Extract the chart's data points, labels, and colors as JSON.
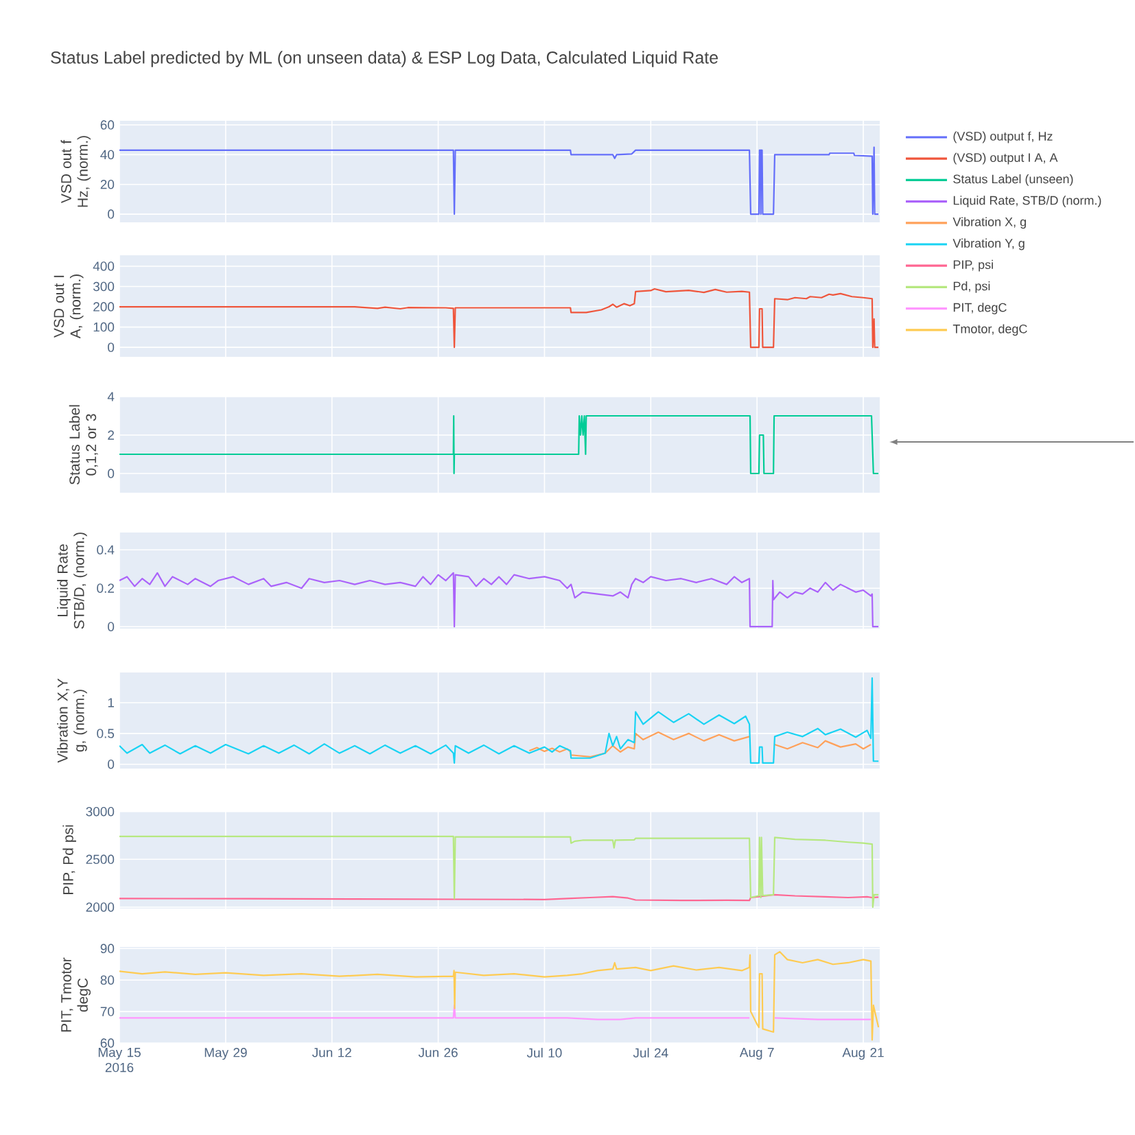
{
  "chart_data": [
    {
      "type": "line",
      "title": "Status Label predicted by ML (on unseen data) & ESP Log Data, Calculated Liquid Rate",
      "ylabel": "VSD out f Hz, (norm.)",
      "xlim": [
        "2016-05-15",
        "2016-08-23T04:00"
      ],
      "ylim": [
        -5.5,
        62.8
      ],
      "yticks": [
        0,
        20,
        40,
        60
      ],
      "xticks": [
        {
          "value": "2016-05-15",
          "label": null
        },
        {
          "value": "2016-05-29",
          "label": null
        },
        {
          "value": "2016-06-12",
          "label": null
        },
        {
          "value": "2016-06-26",
          "label": null
        },
        {
          "value": "2016-07-10",
          "label": null
        },
        {
          "value": "2016-07-24",
          "label": null
        },
        {
          "value": "2016-08-07",
          "label": null
        },
        {
          "value": "2016-08-21",
          "label": null
        }
      ],
      "grid": true,
      "legend": "right",
      "tick_labels": "y",
      "series": [
        {
          "name": "(VSD) output f, Hz",
          "color": "#636efa",
          "x": [
            "2016-05-15T00:00",
            "2016-06-28T00:00",
            "2016-06-28T03:00",
            "2016-06-28T06:00",
            "2016-07-13T10:00",
            "2016-07-13T12:00",
            "2016-07-19T00:00",
            "2016-07-19T06:00",
            "2016-07-19T12:00",
            "2016-07-21T12:00",
            "2016-07-22T00:00",
            "2016-08-06T00:00",
            "2016-08-06T04:00",
            "2016-08-07T06:00",
            "2016-08-07T08:00",
            "2016-08-07T11:00",
            "2016-08-07T12:00",
            "2016-08-07T13:00",
            "2016-08-07T16:00",
            "2016-08-07T18:00",
            "2016-08-09T04:00",
            "2016-08-09T08:00",
            "2016-08-16T12:00",
            "2016-08-16T14:00",
            "2016-08-19T18:00",
            "2016-08-19T20:00",
            "2016-08-22T04:00",
            "2016-08-22T06:00",
            "2016-08-22T10:00",
            "2016-08-22T12:00",
            "2016-08-23T00:00"
          ],
          "values": [
            43,
            43,
            0,
            43,
            43,
            40,
            40,
            37.5,
            40,
            40.5,
            43,
            43,
            0,
            0,
            43,
            43,
            0,
            43,
            43,
            0,
            0,
            40,
            40,
            41,
            41,
            39.5,
            39,
            0,
            45,
            0,
            0
          ]
        }
      ]
    },
    {
      "type": "line",
      "ylabel": "VSD out I A, (norm.)",
      "xlim": [
        "2016-05-15",
        "2016-08-23T04:00"
      ],
      "ylim": [
        -47,
        454
      ],
      "yticks": [
        0,
        100,
        200,
        300,
        400
      ],
      "xticks": [
        {
          "value": "2016-05-15",
          "label": null
        },
        {
          "value": "2016-05-29",
          "label": null
        },
        {
          "value": "2016-06-12",
          "label": null
        },
        {
          "value": "2016-06-26",
          "label": null
        },
        {
          "value": "2016-07-10",
          "label": null
        },
        {
          "value": "2016-07-24",
          "label": null
        },
        {
          "value": "2016-08-07",
          "label": null
        },
        {
          "value": "2016-08-21",
          "label": null
        }
      ],
      "grid": true,
      "legend": "right",
      "tick_labels": "y",
      "series": [
        {
          "name": "(VSD) output I A, A",
          "color": "#ef553b",
          "x": [
            "2016-05-15T00:00",
            "2016-06-15T00:00",
            "2016-06-18T00:00",
            "2016-06-19T00:00",
            "2016-06-21T00:00",
            "2016-06-22T00:00",
            "2016-06-27T00:00",
            "2016-06-28T00:00",
            "2016-06-28T03:00",
            "2016-06-28T06:00",
            "2016-07-13T10:00",
            "2016-07-13T12:00",
            "2016-07-15T12:00",
            "2016-07-17T12:00",
            "2016-07-18T12:00",
            "2016-07-19T00:00",
            "2016-07-19T12:00",
            "2016-07-20T12:00",
            "2016-07-21T06:00",
            "2016-07-21T20:00",
            "2016-07-22T00:00",
            "2016-07-24T00:00",
            "2016-07-24T12:00",
            "2016-07-26T00:00",
            "2016-07-29T00:00",
            "2016-07-31T00:00",
            "2016-08-01T12:00",
            "2016-08-03T00:00",
            "2016-08-05T00:00",
            "2016-08-06T00:00",
            "2016-08-06T04:00",
            "2016-08-07T06:00",
            "2016-08-07T08:00",
            "2016-08-07T16:00",
            "2016-08-07T18:00",
            "2016-08-09T04:00",
            "2016-08-09T08:00",
            "2016-08-11T00:00",
            "2016-08-12T00:00",
            "2016-08-13T12:00",
            "2016-08-14T00:00",
            "2016-08-15T12:00",
            "2016-08-16T12:00",
            "2016-08-17T00:00",
            "2016-08-18T00:00",
            "2016-08-19T12:00",
            "2016-08-21T00:00",
            "2016-08-22T04:00",
            "2016-08-22T06:00",
            "2016-08-22T10:00",
            "2016-08-22T12:00",
            "2016-08-23T00:00"
          ],
          "values": [
            200,
            200,
            192,
            198,
            190,
            196,
            195,
            192,
            0,
            195,
            195,
            172,
            172,
            185,
            200,
            212,
            198,
            215,
            205,
            215,
            275,
            280,
            288,
            274,
            281,
            271,
            285,
            272,
            276,
            272,
            0,
            0,
            190,
            190,
            0,
            0,
            240,
            235,
            245,
            240,
            250,
            245,
            262,
            258,
            265,
            250,
            245,
            240,
            0,
            140,
            0,
            0
          ]
        }
      ]
    },
    {
      "type": "line",
      "ylabel": "Status Label 0,1,2 or 3",
      "xlim": [
        "2016-05-15",
        "2016-08-23T04:00"
      ],
      "ylim": [
        -1,
        4
      ],
      "yticks": [
        0,
        2,
        4
      ],
      "xticks": [
        {
          "value": "2016-05-15",
          "label": null
        },
        {
          "value": "2016-05-29",
          "label": null
        },
        {
          "value": "2016-06-12",
          "label": null
        },
        {
          "value": "2016-06-26",
          "label": null
        },
        {
          "value": "2016-07-10",
          "label": null
        },
        {
          "value": "2016-07-24",
          "label": null
        },
        {
          "value": "2016-08-07",
          "label": null
        },
        {
          "value": "2016-08-21",
          "label": null
        }
      ],
      "grid": true,
      "legend": "right",
      "tick_labels": "y",
      "series": [
        {
          "name": "Status Label (unseen)",
          "color": "#00cc96",
          "x": [
            "2016-05-15T00:00",
            "2016-06-28T00:00",
            "2016-06-28T01:00",
            "2016-06-28T02:00",
            "2016-06-28T03:00",
            "2016-07-14T12:00",
            "2016-07-14T14:00",
            "2016-07-14T18:00",
            "2016-07-14T22:00",
            "2016-07-15T02:00",
            "2016-07-15T06:00",
            "2016-07-15T10:00",
            "2016-07-15T12:00",
            "2016-08-06T02:00",
            "2016-08-06T04:00",
            "2016-08-07T06:00",
            "2016-08-07T08:00",
            "2016-08-07T20:00",
            "2016-08-07T22:00",
            "2016-08-09T04:00",
            "2016-08-09T06:00",
            "2016-08-22T02:00",
            "2016-08-22T04:00",
            "2016-08-22T08:00",
            "2016-08-23T00:00"
          ],
          "values": [
            1,
            1,
            3,
            0,
            1,
            1,
            3,
            2,
            3,
            2,
            3,
            1,
            3,
            3,
            0,
            0,
            2,
            2,
            0,
            0,
            3,
            3,
            2,
            0,
            0
          ]
        }
      ]
    },
    {
      "type": "line",
      "ylabel": "Liquid Rate STB/D, (norm.)",
      "xlim": [
        "2016-05-15",
        "2016-08-23T04:00"
      ],
      "ylim": [
        -0.01,
        0.49
      ],
      "yticks": [
        0,
        0.2,
        0.4
      ],
      "xticks": [
        {
          "value": "2016-05-15",
          "label": null
        },
        {
          "value": "2016-05-29",
          "label": null
        },
        {
          "value": "2016-06-12",
          "label": null
        },
        {
          "value": "2016-06-26",
          "label": null
        },
        {
          "value": "2016-07-10",
          "label": null
        },
        {
          "value": "2016-07-24",
          "label": null
        },
        {
          "value": "2016-08-07",
          "label": null
        },
        {
          "value": "2016-08-21",
          "label": null
        }
      ],
      "grid": true,
      "legend": "right",
      "tick_labels": "y",
      "series": [
        {
          "name": "Liquid Rate, STB/D (norm.)",
          "color": "#ab63fa",
          "x": [
            "2016-05-15T00:00",
            "2016-05-16T00:00",
            "2016-05-17T00:00",
            "2016-05-18T00:00",
            "2016-05-19T00:00",
            "2016-05-20T00:00",
            "2016-05-21T00:00",
            "2016-05-22T00:00",
            "2016-05-24T00:00",
            "2016-05-25T00:00",
            "2016-05-27T00:00",
            "2016-05-28T00:00",
            "2016-05-30T00:00",
            "2016-06-01T00:00",
            "2016-06-03T00:00",
            "2016-06-04T00:00",
            "2016-06-06T00:00",
            "2016-06-08T00:00",
            "2016-06-09T00:00",
            "2016-06-11T00:00",
            "2016-06-13T00:00",
            "2016-06-15T00:00",
            "2016-06-17T00:00",
            "2016-06-19T00:00",
            "2016-06-21T00:00",
            "2016-06-23T00:00",
            "2016-06-24T00:00",
            "2016-06-25T00:00",
            "2016-06-26T00:00",
            "2016-06-27T00:00",
            "2016-06-28T00:00",
            "2016-06-28T03:00",
            "2016-06-28T06:00",
            "2016-06-30T00:00",
            "2016-07-01T00:00",
            "2016-07-02T00:00",
            "2016-07-03T00:00",
            "2016-07-04T00:00",
            "2016-07-05T00:00",
            "2016-07-06T00:00",
            "2016-07-08T00:00",
            "2016-07-10T00:00",
            "2016-07-12T00:00",
            "2016-07-13T00:00",
            "2016-07-13T12:00",
            "2016-07-14T00:00",
            "2016-07-15T00:00",
            "2016-07-17T00:00",
            "2016-07-19T00:00",
            "2016-07-20T00:00",
            "2016-07-21T00:00",
            "2016-07-21T12:00",
            "2016-07-22T00:00",
            "2016-07-23T00:00",
            "2016-07-24T00:00",
            "2016-07-26T00:00",
            "2016-07-28T00:00",
            "2016-07-30T00:00",
            "2016-08-01T00:00",
            "2016-08-03T00:00",
            "2016-08-04T00:00",
            "2016-08-05T00:00",
            "2016-08-06T00:00",
            "2016-08-06T02:00",
            "2016-08-09T00:00",
            "2016-08-09T02:00",
            "2016-08-09T04:00",
            "2016-08-10T00:00",
            "2016-08-11T00:00",
            "2016-08-12T00:00",
            "2016-08-13T00:00",
            "2016-08-14T00:00",
            "2016-08-15T00:00",
            "2016-08-16T00:00",
            "2016-08-17T00:00",
            "2016-08-18T00:00",
            "2016-08-19T00:00",
            "2016-08-20T00:00",
            "2016-08-21T00:00",
            "2016-08-22T00:00",
            "2016-08-22T04:00",
            "2016-08-22T06:00",
            "2016-08-23T00:00"
          ],
          "values": [
            0.24,
            0.26,
            0.21,
            0.25,
            0.22,
            0.28,
            0.21,
            0.26,
            0.22,
            0.25,
            0.21,
            0.24,
            0.26,
            0.22,
            0.25,
            0.21,
            0.23,
            0.2,
            0.25,
            0.23,
            0.24,
            0.22,
            0.24,
            0.22,
            0.23,
            0.21,
            0.26,
            0.22,
            0.27,
            0.24,
            0.28,
            0,
            0.27,
            0.26,
            0.21,
            0.25,
            0.22,
            0.26,
            0.22,
            0.27,
            0.25,
            0.26,
            0.24,
            0.2,
            0.22,
            0.15,
            0.18,
            0.17,
            0.16,
            0.18,
            0.15,
            0.22,
            0.25,
            0.23,
            0.26,
            0.24,
            0.25,
            0.23,
            0.25,
            0.22,
            0.26,
            0.23,
            0.25,
            0,
            0,
            0.24,
            0.14,
            0.18,
            0.15,
            0.18,
            0.17,
            0.2,
            0.18,
            0.23,
            0.19,
            0.22,
            0.2,
            0.18,
            0.19,
            0.16,
            0.17,
            0,
            0
          ]
        }
      ]
    },
    {
      "type": "line",
      "ylabel": "Vibration X,Y g, (norm.)",
      "xlim": [
        "2016-05-15",
        "2016-08-23T04:00"
      ],
      "ylim": [
        -0.07,
        1.49
      ],
      "yticks": [
        0,
        0.5,
        1
      ],
      "xticks": [
        {
          "value": "2016-05-15",
          "label": null
        },
        {
          "value": "2016-05-29",
          "label": null
        },
        {
          "value": "2016-06-12",
          "label": null
        },
        {
          "value": "2016-06-26",
          "label": null
        },
        {
          "value": "2016-07-10",
          "label": null
        },
        {
          "value": "2016-07-24",
          "label": null
        },
        {
          "value": "2016-08-07",
          "label": null
        },
        {
          "value": "2016-08-21",
          "label": null
        }
      ],
      "grid": true,
      "legend": "right",
      "tick_labels": "y",
      "series": [
        {
          "name": "Vibration X, g",
          "color": "#ffa15a",
          "x": [
            "2016-07-08T00:00",
            "2016-07-09T00:00",
            "2016-07-10T00:00",
            "2016-07-11T00:00",
            "2016-07-12T00:00",
            "2016-07-13T00:00",
            "2016-07-13T10:00",
            "2016-07-13T12:00",
            "2016-07-16T00:00",
            "2016-07-18T00:00",
            "2016-07-19T00:00",
            "2016-07-20T00:00",
            "2016-07-21T00:00",
            "2016-07-21T20:00",
            "2016-07-22T00:00",
            "2016-07-23T00:00",
            "2016-07-25T00:00",
            "2016-07-27T00:00",
            "2016-07-29T00:00",
            "2016-07-31T00:00",
            "2016-08-02T00:00",
            "2016-08-04T00:00",
            "2016-08-06T00:00",
            "2016-08-07T00:00",
            "2016-08-09T08:00",
            "2016-08-11T00:00",
            "2016-08-13T00:00",
            "2016-08-15T00:00",
            "2016-08-16T00:00",
            "2016-08-18T00:00",
            "2016-08-20T00:00",
            "2016-08-21T00:00",
            "2016-08-22T00:00"
          ],
          "values": [
            0.22,
            0.27,
            0.21,
            0.26,
            0.2,
            0.25,
            0.2,
            0.15,
            0.12,
            0.18,
            0.3,
            0.2,
            0.28,
            0.25,
            0.5,
            0.4,
            0.52,
            0.4,
            0.5,
            0.38,
            0.48,
            0.38,
            0.45,
            null,
            0.32,
            0.25,
            0.35,
            0.27,
            0.38,
            0.28,
            0.33,
            0.25,
            0.32
          ]
        },
        {
          "name": "Vibration Y, g",
          "color": "#19d3f3",
          "x": [
            "2016-05-15T00:00",
            "2016-05-16T00:00",
            "2016-05-18T00:00",
            "2016-05-19T00:00",
            "2016-05-21T00:00",
            "2016-05-23T00:00",
            "2016-05-25T00:00",
            "2016-05-27T00:00",
            "2016-05-29T00:00",
            "2016-06-01T00:00",
            "2016-06-03T00:00",
            "2016-06-05T00:00",
            "2016-06-07T00:00",
            "2016-06-09T00:00",
            "2016-06-11T00:00",
            "2016-06-13T00:00",
            "2016-06-15T00:00",
            "2016-06-17T00:00",
            "2016-06-19T00:00",
            "2016-06-21T00:00",
            "2016-06-23T00:00",
            "2016-06-25T00:00",
            "2016-06-27T00:00",
            "2016-06-28T00:00",
            "2016-06-28T03:00",
            "2016-06-28T06:00",
            "2016-06-30T00:00",
            "2016-07-02T00:00",
            "2016-07-04T00:00",
            "2016-07-06T00:00",
            "2016-07-08T00:00",
            "2016-07-10T00:00",
            "2016-07-11T00:00",
            "2016-07-12T00:00",
            "2016-07-13T10:00",
            "2016-07-13T12:00",
            "2016-07-16T00:00",
            "2016-07-18T00:00",
            "2016-07-18T12:00",
            "2016-07-19T00:00",
            "2016-07-19T12:00",
            "2016-07-20T00:00",
            "2016-07-21T00:00",
            "2016-07-21T20:00",
            "2016-07-22T00:00",
            "2016-07-23T00:00",
            "2016-07-25T00:00",
            "2016-07-27T00:00",
            "2016-07-29T00:00",
            "2016-07-31T00:00",
            "2016-08-02T00:00",
            "2016-08-04T00:00",
            "2016-08-05T12:00",
            "2016-08-06T00:00",
            "2016-08-06T04:00",
            "2016-08-07T06:00",
            "2016-08-07T08:00",
            "2016-08-07T16:00",
            "2016-08-07T18:00",
            "2016-08-09T04:00",
            "2016-08-09T08:00",
            "2016-08-11T00:00",
            "2016-08-13T00:00",
            "2016-08-15T00:00",
            "2016-08-16T00:00",
            "2016-08-18T00:00",
            "2016-08-20T00:00",
            "2016-08-21T12:00",
            "2016-08-22T00:00",
            "2016-08-22T04:00",
            "2016-08-22T08:00",
            "2016-08-23T00:00"
          ],
          "values": [
            0.3,
            0.18,
            0.32,
            0.18,
            0.31,
            0.17,
            0.3,
            0.18,
            0.32,
            0.17,
            0.3,
            0.18,
            0.31,
            0.17,
            0.33,
            0.18,
            0.3,
            0.17,
            0.31,
            0.18,
            0.3,
            0.17,
            0.31,
            0.18,
            0.02,
            0.3,
            0.18,
            0.31,
            0.17,
            0.3,
            0.18,
            0.28,
            0.2,
            0.3,
            0.22,
            0.1,
            0.1,
            0.18,
            0.5,
            0.3,
            0.45,
            0.25,
            0.4,
            0.35,
            0.85,
            0.65,
            0.85,
            0.68,
            0.82,
            0.65,
            0.8,
            0.66,
            0.78,
            0.65,
            0.02,
            0.02,
            0.28,
            0.28,
            0.02,
            0.02,
            0.45,
            0.52,
            0.45,
            0.58,
            0.48,
            0.57,
            0.44,
            0.55,
            0.42,
            1.4,
            0.05,
            0.05
          ]
        }
      ]
    },
    {
      "type": "line",
      "ylabel": "PIP, Pd psi",
      "xlim": [
        "2016-05-15",
        "2016-08-23T04:00"
      ],
      "ylim": [
        1985,
        3005
      ],
      "yticks": [
        2000,
        2500,
        3000
      ],
      "xticks": [
        {
          "value": "2016-05-15",
          "label": null
        },
        {
          "value": "2016-05-29",
          "label": null
        },
        {
          "value": "2016-06-12",
          "label": null
        },
        {
          "value": "2016-06-26",
          "label": null
        },
        {
          "value": "2016-07-10",
          "label": null
        },
        {
          "value": "2016-07-24",
          "label": null
        },
        {
          "value": "2016-08-07",
          "label": null
        },
        {
          "value": "2016-08-21",
          "label": null
        }
      ],
      "grid": true,
      "legend": "right",
      "tick_labels": "y",
      "series": [
        {
          "name": "PIP, psi",
          "color": "#ff6692",
          "x": [
            "2016-05-15T00:00",
            "2016-06-01T00:00",
            "2016-06-15T00:00",
            "2016-06-28T00:00",
            "2016-07-10T00:00",
            "2016-07-13T00:00",
            "2016-07-16T00:00",
            "2016-07-19T00:00",
            "2016-07-21T00:00",
            "2016-07-22T00:00",
            "2016-07-28T00:00",
            "2016-08-03T00:00",
            "2016-08-06T00:00",
            "2016-08-06T04:00",
            "2016-08-07T06:00",
            "2016-08-09T06:00",
            "2016-08-12T00:00",
            "2016-08-16T00:00",
            "2016-08-19T00:00",
            "2016-08-21T12:00",
            "2016-08-22T04:00",
            "2016-08-23T00:00"
          ],
          "values": [
            2090,
            2088,
            2085,
            2082,
            2080,
            2090,
            2100,
            2110,
            2095,
            2075,
            2070,
            2072,
            2070,
            2100,
            2110,
            2130,
            2118,
            2108,
            2100,
            2108,
            2100,
            2105
          ]
        },
        {
          "name": "Pd, psi",
          "color": "#b6e880",
          "x": [
            "2016-05-15T00:00",
            "2016-06-28T00:00",
            "2016-06-28T03:00",
            "2016-06-28T06:00",
            "2016-07-13T10:00",
            "2016-07-13T12:00",
            "2016-07-14T00:00",
            "2016-07-15T00:00",
            "2016-07-19T00:00",
            "2016-07-19T04:00",
            "2016-07-19T08:00",
            "2016-07-21T20:00",
            "2016-07-22T00:00",
            "2016-08-06T00:00",
            "2016-08-06T04:00",
            "2016-08-07T06:00",
            "2016-08-07T08:00",
            "2016-08-07T12:00",
            "2016-08-07T14:00",
            "2016-08-07T18:00",
            "2016-08-09T04:00",
            "2016-08-09T08:00",
            "2016-08-12T00:00",
            "2016-08-16T00:00",
            "2016-08-19T00:00",
            "2016-08-21T00:00",
            "2016-08-22T04:00",
            "2016-08-22T06:00",
            "2016-08-22T10:00",
            "2016-08-23T00:00"
          ],
          "values": [
            2740,
            2740,
            2090,
            2735,
            2735,
            2670,
            2690,
            2700,
            2700,
            2620,
            2700,
            2705,
            2720,
            2720,
            2100,
            2120,
            2730,
            2100,
            2730,
            2120,
            2130,
            2730,
            2710,
            2700,
            2680,
            2670,
            2660,
            2000,
            2130,
            2130
          ]
        }
      ]
    },
    {
      "type": "line",
      "ylabel": "PIT, Tmotor degC",
      "xlim": [
        "2016-05-15",
        "2016-08-23T04:00"
      ],
      "ylim": [
        60,
        90.5
      ],
      "yticks": [
        60,
        70,
        80,
        90
      ],
      "xticks": [
        {
          "value": "2016-05-15",
          "label": "May 15 2016"
        },
        {
          "value": "2016-05-29",
          "label": "May 29"
        },
        {
          "value": "2016-06-12",
          "label": "Jun 12"
        },
        {
          "value": "2016-06-26",
          "label": "Jun 26"
        },
        {
          "value": "2016-07-10",
          "label": "Jul 10"
        },
        {
          "value": "2016-07-24",
          "label": "Jul 24"
        },
        {
          "value": "2016-08-07",
          "label": "Aug 7"
        },
        {
          "value": "2016-08-21",
          "label": "Aug 21"
        }
      ],
      "grid": true,
      "legend": "right",
      "series": [
        {
          "name": "PIT, degC",
          "color": "#ff97ff",
          "x": [
            "2016-05-15T00:00",
            "2016-06-28T00:00",
            "2016-06-28T03:00",
            "2016-06-28T06:00",
            "2016-07-13T00:00",
            "2016-07-17T00:00",
            "2016-07-20T00:00",
            "2016-07-22T00:00",
            "2016-08-06T00:00",
            "2016-08-07T00:00",
            "2016-08-09T08:00",
            "2016-08-15T00:00",
            "2016-08-22T00:00"
          ],
          "values": [
            68,
            68,
            72,
            68,
            68,
            67.5,
            67.5,
            68,
            68,
            null,
            68,
            67.5,
            67.5
          ]
        },
        {
          "name": "Tmotor, degC",
          "color": "#fecb52",
          "x": [
            "2016-05-15T00:00",
            "2016-05-18T00:00",
            "2016-05-21T00:00",
            "2016-05-25T00:00",
            "2016-05-29T00:00",
            "2016-06-03T00:00",
            "2016-06-08T00:00",
            "2016-06-13T00:00",
            "2016-06-18T00:00",
            "2016-06-23T00:00",
            "2016-06-28T00:00",
            "2016-06-28T02:00",
            "2016-06-28T04:00",
            "2016-06-28T06:00",
            "2016-07-02T00:00",
            "2016-07-06T00:00",
            "2016-07-10T00:00",
            "2016-07-13T00:00",
            "2016-07-15T00:00",
            "2016-07-17T00:00",
            "2016-07-19T00:00",
            "2016-07-19T06:00",
            "2016-07-19T12:00",
            "2016-07-22T00:00",
            "2016-07-24T00:00",
            "2016-07-27T00:00",
            "2016-07-30T00:00",
            "2016-08-02T00:00",
            "2016-08-05T00:00",
            "2016-08-06T00:00",
            "2016-08-06T02:00",
            "2016-08-06T04:00",
            "2016-08-07T00:00",
            "2016-08-07T06:00",
            "2016-08-07T08:00",
            "2016-08-07T16:00",
            "2016-08-07T18:00",
            "2016-08-09T04:00",
            "2016-08-09T08:00",
            "2016-08-10T00:00",
            "2016-08-11T00:00",
            "2016-08-13T00:00",
            "2016-08-15T00:00",
            "2016-08-17T00:00",
            "2016-08-19T00:00",
            "2016-08-21T00:00",
            "2016-08-22T00:00",
            "2016-08-22T04:00",
            "2016-08-22T08:00",
            "2016-08-23T00:00"
          ],
          "values": [
            82.8,
            82,
            82.6,
            81.8,
            82.3,
            81.5,
            82,
            81.2,
            81.8,
            81,
            81.2,
            83,
            71,
            82.5,
            81.5,
            82,
            81,
            81.5,
            82,
            83,
            83.5,
            85.5,
            83.5,
            84,
            83,
            84.5,
            83.2,
            84,
            83,
            84,
            88,
            70,
            66,
            65,
            82,
            82,
            64.5,
            63.5,
            88,
            89,
            86.5,
            85.5,
            86.5,
            85,
            85.5,
            86.5,
            86,
            61,
            72,
            65
          ]
        }
      ]
    }
  ]
}
